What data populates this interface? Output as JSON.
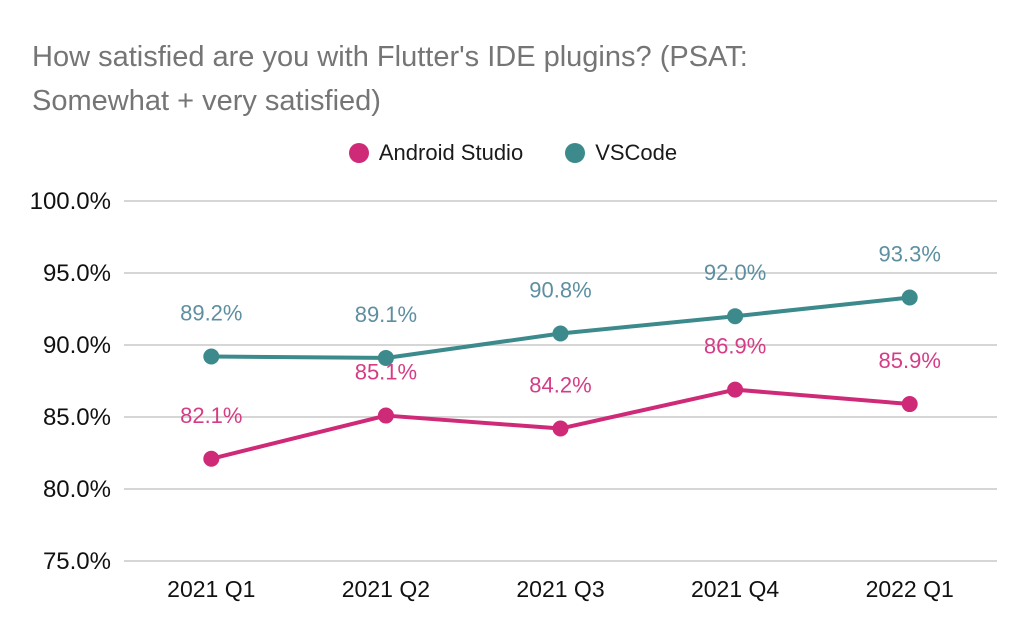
{
  "title_lines": [
    "How satisfied are you with Flutter's IDE plugins? (PSAT:",
    "Somewhat + very satisfied)"
  ],
  "chart_data": {
    "type": "line",
    "title": "How satisfied are you with Flutter's IDE plugins? (PSAT: Somewhat + very satisfied)",
    "xlabel": "",
    "ylabel": "",
    "grid": true,
    "legend_position": "top",
    "categories": [
      "2021 Q1",
      "2021 Q2",
      "2021 Q3",
      "2021 Q4",
      "2022 Q1"
    ],
    "series": [
      {
        "name": "Android Studio",
        "color": "#ce2a78",
        "label_color": "#d63c86",
        "values": [
          82.1,
          85.1,
          84.2,
          86.9,
          85.9
        ],
        "labels": [
          "82.1%",
          "85.1%",
          "84.2%",
          "86.9%",
          "85.9%"
        ]
      },
      {
        "name": "VSCode",
        "color": "#3c8a8c",
        "label_color": "#5d8fa1",
        "values": [
          89.2,
          89.1,
          90.8,
          92.0,
          93.3
        ],
        "labels": [
          "89.2%",
          "89.1%",
          "90.8%",
          "92.0%",
          "93.3%"
        ]
      }
    ],
    "y_axis": {
      "min": 75,
      "max": 100,
      "tick_step": 5,
      "ticks": [
        {
          "value": 100,
          "label": "100.0%"
        },
        {
          "value": 95,
          "label": "95.0%"
        },
        {
          "value": 90,
          "label": "90.0%"
        },
        {
          "value": 85,
          "label": "85.0%"
        },
        {
          "value": 80,
          "label": "80.0%"
        },
        {
          "value": 75,
          "label": "75.0%"
        }
      ]
    },
    "style": {
      "background": "#ffffff",
      "grid_color": "#d6d6d6",
      "axis_text_color": "#111111",
      "title_color": "#757575"
    }
  }
}
